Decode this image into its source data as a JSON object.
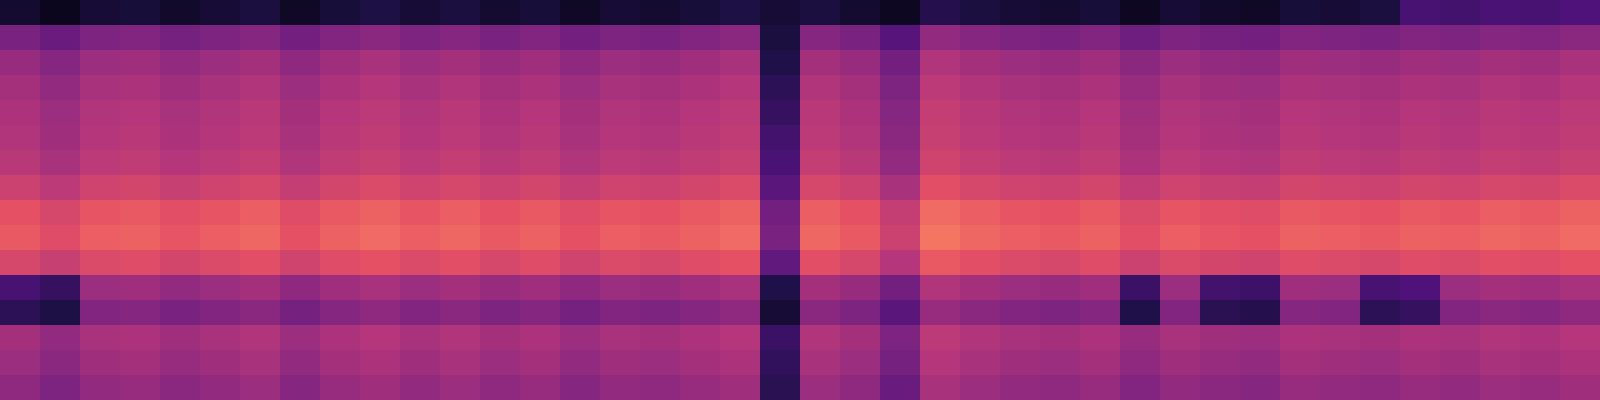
{
  "chart_data": {
    "type": "heatmap",
    "tick_labels": false,
    "zlim": [
      0,
      1
    ],
    "values": [
      [
        0.09,
        0.05,
        0.1,
        0.11,
        0.08,
        0.1,
        0.12,
        0.07,
        0.11,
        0.13,
        0.1,
        0.12,
        0.09,
        0.11,
        0.07,
        0.1,
        0.09,
        0.11,
        0.13,
        0.1,
        0.12,
        0.09,
        0.06,
        0.15,
        0.12,
        0.1,
        0.09,
        0.11,
        0.06,
        0.1,
        0.08,
        0.07,
        0.11,
        0.1,
        0.12,
        0.23,
        0.22,
        0.24,
        0.23,
        0.25
      ],
      [
        0.36,
        0.32,
        0.37,
        0.38,
        0.35,
        0.37,
        0.39,
        0.34,
        0.38,
        0.4,
        0.37,
        0.39,
        0.36,
        0.38,
        0.34,
        0.37,
        0.36,
        0.38,
        0.4,
        0.12,
        0.39,
        0.36,
        0.27,
        0.42,
        0.39,
        0.37,
        0.36,
        0.38,
        0.33,
        0.37,
        0.35,
        0.34,
        0.38,
        0.37,
        0.36,
        0.38,
        0.37,
        0.39,
        0.38,
        0.4
      ],
      [
        0.43,
        0.39,
        0.44,
        0.45,
        0.42,
        0.44,
        0.46,
        0.41,
        0.45,
        0.47,
        0.44,
        0.46,
        0.43,
        0.45,
        0.41,
        0.44,
        0.43,
        0.45,
        0.47,
        0.14,
        0.46,
        0.43,
        0.34,
        0.49,
        0.46,
        0.44,
        0.43,
        0.45,
        0.4,
        0.44,
        0.42,
        0.41,
        0.45,
        0.44,
        0.43,
        0.45,
        0.44,
        0.46,
        0.45,
        0.47
      ],
      [
        0.46,
        0.42,
        0.47,
        0.48,
        0.45,
        0.47,
        0.49,
        0.44,
        0.48,
        0.5,
        0.47,
        0.49,
        0.46,
        0.48,
        0.44,
        0.47,
        0.46,
        0.48,
        0.5,
        0.17,
        0.49,
        0.46,
        0.37,
        0.52,
        0.49,
        0.47,
        0.46,
        0.48,
        0.43,
        0.47,
        0.45,
        0.44,
        0.48,
        0.47,
        0.46,
        0.48,
        0.47,
        0.49,
        0.48,
        0.5
      ],
      [
        0.48,
        0.44,
        0.49,
        0.5,
        0.47,
        0.49,
        0.51,
        0.46,
        0.5,
        0.52,
        0.49,
        0.51,
        0.48,
        0.5,
        0.46,
        0.49,
        0.48,
        0.5,
        0.52,
        0.19,
        0.51,
        0.48,
        0.39,
        0.54,
        0.51,
        0.49,
        0.48,
        0.5,
        0.45,
        0.49,
        0.47,
        0.46,
        0.5,
        0.49,
        0.48,
        0.5,
        0.49,
        0.51,
        0.5,
        0.52
      ],
      [
        0.49,
        0.45,
        0.5,
        0.51,
        0.48,
        0.5,
        0.52,
        0.47,
        0.51,
        0.53,
        0.5,
        0.52,
        0.49,
        0.51,
        0.47,
        0.5,
        0.49,
        0.51,
        0.53,
        0.22,
        0.52,
        0.49,
        0.4,
        0.55,
        0.52,
        0.5,
        0.49,
        0.51,
        0.46,
        0.5,
        0.48,
        0.47,
        0.51,
        0.5,
        0.49,
        0.51,
        0.5,
        0.52,
        0.51,
        0.53
      ],
      [
        0.51,
        0.47,
        0.52,
        0.53,
        0.5,
        0.52,
        0.54,
        0.49,
        0.53,
        0.55,
        0.52,
        0.54,
        0.51,
        0.53,
        0.49,
        0.52,
        0.51,
        0.53,
        0.55,
        0.24,
        0.54,
        0.51,
        0.42,
        0.57,
        0.54,
        0.52,
        0.51,
        0.53,
        0.48,
        0.52,
        0.5,
        0.49,
        0.53,
        0.52,
        0.51,
        0.53,
        0.52,
        0.54,
        0.53,
        0.55
      ],
      [
        0.56,
        0.52,
        0.57,
        0.58,
        0.55,
        0.57,
        0.59,
        0.54,
        0.58,
        0.6,
        0.57,
        0.59,
        0.56,
        0.58,
        0.54,
        0.57,
        0.56,
        0.58,
        0.6,
        0.28,
        0.59,
        0.56,
        0.47,
        0.62,
        0.59,
        0.57,
        0.56,
        0.58,
        0.53,
        0.57,
        0.55,
        0.54,
        0.58,
        0.57,
        0.56,
        0.58,
        0.57,
        0.59,
        0.58,
        0.6
      ],
      [
        0.63,
        0.59,
        0.64,
        0.65,
        0.62,
        0.64,
        0.66,
        0.61,
        0.65,
        0.67,
        0.64,
        0.66,
        0.63,
        0.65,
        0.61,
        0.64,
        0.63,
        0.65,
        0.67,
        0.34,
        0.66,
        0.63,
        0.54,
        0.69,
        0.66,
        0.64,
        0.63,
        0.65,
        0.6,
        0.64,
        0.62,
        0.61,
        0.65,
        0.64,
        0.63,
        0.65,
        0.64,
        0.66,
        0.65,
        0.67
      ],
      [
        0.65,
        0.61,
        0.66,
        0.67,
        0.64,
        0.66,
        0.68,
        0.63,
        0.67,
        0.69,
        0.66,
        0.68,
        0.65,
        0.67,
        0.63,
        0.66,
        0.65,
        0.67,
        0.69,
        0.36,
        0.68,
        0.65,
        0.56,
        0.71,
        0.68,
        0.66,
        0.65,
        0.67,
        0.62,
        0.66,
        0.64,
        0.63,
        0.67,
        0.66,
        0.65,
        0.67,
        0.66,
        0.68,
        0.67,
        0.69
      ],
      [
        0.59,
        0.55,
        0.6,
        0.61,
        0.58,
        0.6,
        0.62,
        0.57,
        0.61,
        0.63,
        0.6,
        0.62,
        0.59,
        0.61,
        0.57,
        0.6,
        0.59,
        0.61,
        0.63,
        0.3,
        0.62,
        0.59,
        0.5,
        0.65,
        0.62,
        0.6,
        0.59,
        0.61,
        0.56,
        0.6,
        0.58,
        0.57,
        0.61,
        0.6,
        0.59,
        0.61,
        0.6,
        0.62,
        0.61,
        0.63
      ],
      [
        0.23,
        0.19,
        0.44,
        0.45,
        0.42,
        0.44,
        0.46,
        0.41,
        0.45,
        0.47,
        0.44,
        0.46,
        0.43,
        0.45,
        0.41,
        0.44,
        0.43,
        0.45,
        0.47,
        0.14,
        0.46,
        0.43,
        0.34,
        0.49,
        0.46,
        0.44,
        0.43,
        0.45,
        0.2,
        0.44,
        0.22,
        0.21,
        0.45,
        0.44,
        0.23,
        0.25,
        0.44,
        0.46,
        0.45,
        0.47
      ],
      [
        0.17,
        0.13,
        0.38,
        0.39,
        0.36,
        0.38,
        0.4,
        0.35,
        0.39,
        0.41,
        0.38,
        0.4,
        0.37,
        0.39,
        0.35,
        0.38,
        0.37,
        0.39,
        0.41,
        0.1,
        0.4,
        0.37,
        0.28,
        0.43,
        0.4,
        0.38,
        0.37,
        0.39,
        0.14,
        0.38,
        0.16,
        0.15,
        0.39,
        0.38,
        0.17,
        0.19,
        0.38,
        0.4,
        0.39,
        0.41
      ],
      [
        0.46,
        0.42,
        0.47,
        0.48,
        0.45,
        0.47,
        0.49,
        0.44,
        0.48,
        0.5,
        0.47,
        0.49,
        0.46,
        0.48,
        0.44,
        0.47,
        0.46,
        0.48,
        0.5,
        0.2,
        0.49,
        0.46,
        0.37,
        0.52,
        0.49,
        0.47,
        0.46,
        0.48,
        0.43,
        0.47,
        0.45,
        0.44,
        0.48,
        0.47,
        0.46,
        0.48,
        0.47,
        0.49,
        0.48,
        0.5
      ],
      [
        0.44,
        0.4,
        0.45,
        0.46,
        0.43,
        0.45,
        0.47,
        0.42,
        0.46,
        0.48,
        0.45,
        0.47,
        0.44,
        0.46,
        0.42,
        0.45,
        0.44,
        0.46,
        0.48,
        0.18,
        0.47,
        0.44,
        0.35,
        0.5,
        0.47,
        0.45,
        0.44,
        0.46,
        0.41,
        0.45,
        0.43,
        0.42,
        0.46,
        0.45,
        0.44,
        0.46,
        0.45,
        0.47,
        0.46,
        0.48
      ],
      [
        0.41,
        0.37,
        0.42,
        0.43,
        0.4,
        0.42,
        0.44,
        0.39,
        0.43,
        0.45,
        0.42,
        0.44,
        0.41,
        0.43,
        0.39,
        0.42,
        0.41,
        0.43,
        0.45,
        0.16,
        0.44,
        0.41,
        0.32,
        0.47,
        0.44,
        0.42,
        0.41,
        0.43,
        0.38,
        0.42,
        0.4,
        0.39,
        0.43,
        0.42,
        0.41,
        0.43,
        0.42,
        0.44,
        0.43,
        0.45
      ]
    ]
  }
}
